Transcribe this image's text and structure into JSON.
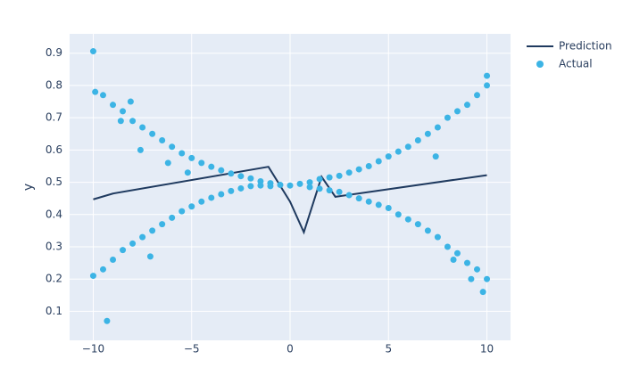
{
  "chart_data": {
    "type": "scatter",
    "ylabel": "y",
    "xlim": [
      -11.2,
      11.2
    ],
    "ylim": [
      0.01,
      0.96
    ],
    "xticks": [
      {
        "value": -10,
        "label": "−10"
      },
      {
        "value": -5,
        "label": "−5"
      },
      0,
      5,
      10
    ],
    "yticks": [
      0.1,
      0.2,
      0.3,
      0.4,
      0.5,
      0.6,
      0.7,
      0.8,
      0.9
    ],
    "grid": true,
    "legend": "top-right",
    "series": [
      {
        "name": "Prediction",
        "mode": "line",
        "color": "#1f3a5f",
        "x": [
          -10,
          -9,
          -1.1,
          0,
          0.7,
          1.6,
          2.3,
          10
        ],
        "values": [
          0.447,
          0.465,
          0.548,
          0.44,
          0.345,
          0.517,
          0.455,
          0.522
        ]
      },
      {
        "name": "Actual",
        "mode": "markers",
        "color": "#3cb4e5",
        "x": [
          -10,
          -10,
          -9.9,
          -9.5,
          -9.5,
          -9.3,
          -9,
          -9,
          -8.6,
          -8.5,
          -8.5,
          -8.1,
          -8,
          -8,
          -7.6,
          -7.5,
          -7.5,
          -7.1,
          -7,
          -7,
          -6.5,
          -6.5,
          -6.2,
          -6,
          -6,
          -5.5,
          -5.5,
          -5.2,
          -5,
          -5,
          -4.5,
          -4.5,
          -4,
          -4,
          -3.5,
          -3.5,
          -3,
          -3,
          -2.5,
          -2.5,
          -2,
          -2,
          -1.5,
          -1.5,
          -1,
          -1,
          -0.5,
          0,
          0.5,
          1,
          1,
          1.5,
          1.5,
          2,
          2,
          2.5,
          2.5,
          3,
          3,
          3.5,
          3.5,
          4,
          4,
          4.5,
          4.5,
          5,
          5,
          5.5,
          5.5,
          6,
          6,
          6.5,
          6.5,
          7,
          7,
          7.4,
          7.5,
          7.5,
          8,
          8,
          8.3,
          8.5,
          8.5,
          9,
          9,
          9.2,
          9.5,
          9.5,
          9.8,
          10,
          10,
          10
        ],
        "values": [
          0.906,
          0.21,
          0.78,
          0.77,
          0.23,
          0.07,
          0.74,
          0.26,
          0.69,
          0.72,
          0.29,
          0.75,
          0.69,
          0.31,
          0.6,
          0.67,
          0.33,
          0.27,
          0.65,
          0.35,
          0.63,
          0.37,
          0.56,
          0.61,
          0.39,
          0.59,
          0.41,
          0.53,
          0.575,
          0.425,
          0.56,
          0.44,
          0.548,
          0.452,
          0.537,
          0.463,
          0.527,
          0.473,
          0.519,
          0.481,
          0.512,
          0.488,
          0.503,
          0.49,
          0.497,
          0.488,
          0.492,
          0.49,
          0.495,
          0.5,
          0.485,
          0.51,
          0.48,
          0.515,
          0.475,
          0.52,
          0.47,
          0.53,
          0.46,
          0.54,
          0.45,
          0.55,
          0.44,
          0.565,
          0.43,
          0.58,
          0.42,
          0.595,
          0.4,
          0.61,
          0.385,
          0.63,
          0.37,
          0.65,
          0.35,
          0.58,
          0.67,
          0.33,
          0.7,
          0.3,
          0.26,
          0.72,
          0.28,
          0.74,
          0.25,
          0.2,
          0.77,
          0.23,
          0.16,
          0.83,
          0.8,
          0.2
        ]
      }
    ]
  }
}
